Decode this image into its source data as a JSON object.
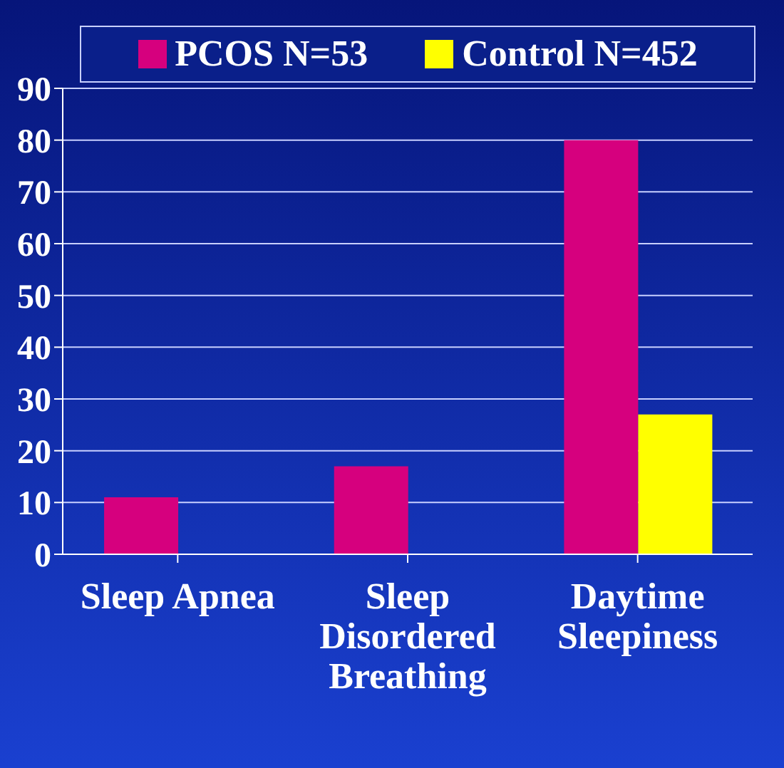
{
  "chart_data": {
    "type": "bar",
    "categories": [
      "Sleep Apnea",
      "Sleep Disordered Breathing",
      "Daytime Sleepiness"
    ],
    "series": [
      {
        "name": "PCOS N=53",
        "color": "#d6007e",
        "values": [
          11,
          17,
          80
        ]
      },
      {
        "name": "Control N=452",
        "color": "#ffff00",
        "values": [
          0,
          0,
          27
        ]
      }
    ],
    "ylim": [
      0,
      90
    ],
    "yticks": [
      0,
      10,
      20,
      30,
      40,
      50,
      60,
      70,
      80,
      90
    ],
    "grid": "y",
    "legend": "top"
  }
}
